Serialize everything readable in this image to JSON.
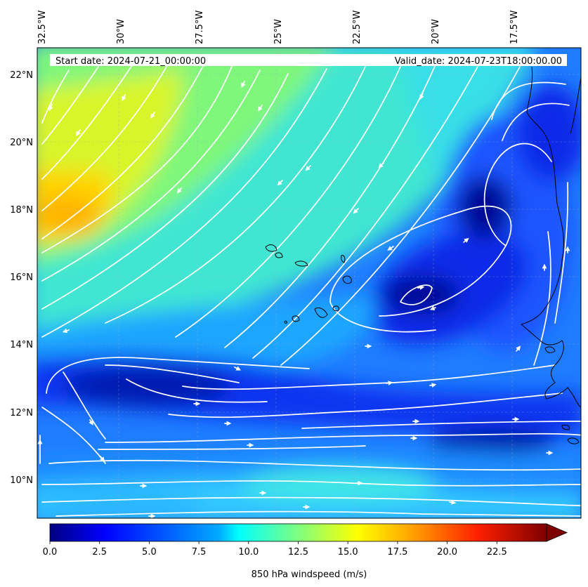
{
  "header": {
    "start_date": "Start date: 2024-07-21_00:00:00",
    "valid_date": "Valid_date: 2024-07-23T18:00:00.00"
  },
  "axes": {
    "lon_labels": [
      "32.5°W",
      "30°W",
      "27.5°W",
      "25°W",
      "22.5°W",
      "20°W",
      "17.5°W"
    ],
    "lat_labels": [
      "22°N",
      "20°N",
      "18°N",
      "16°N",
      "14°N",
      "12°N",
      "10°N"
    ]
  },
  "colorbar": {
    "label": "850 hPa windspeed (m/s)",
    "ticks": [
      "0.0",
      "2.5",
      "5.0",
      "7.5",
      "10.0",
      "12.5",
      "15.0",
      "17.5",
      "20.0",
      "22.5"
    ],
    "min": 0,
    "max": 25,
    "extend": "max",
    "colormap": [
      "#00007f",
      "#0000ff",
      "#007fff",
      "#00ffff",
      "#7fff7f",
      "#ffff00",
      "#ff7f00",
      "#ff0000",
      "#7f0000"
    ]
  },
  "map": {
    "projection": "PlateCarree",
    "lon_range": [
      -32.5,
      -15.5
    ],
    "lat_range": [
      8.8,
      22.8
    ],
    "field": "850 hPa windspeed (m/s)",
    "features": [
      "streamlines (white)",
      "coastlines (black)",
      "gridlines (dashed)"
    ],
    "highlights": [
      {
        "region": "NW corner",
        "speed_ms": 15
      },
      {
        "region": "cyclonic vortex near 19.5W 15.5N",
        "speed_ms": 3
      },
      {
        "region": "belt near 12.5N",
        "speed_ms": 4
      },
      {
        "region": "band near 10N",
        "speed_ms": 10
      }
    ]
  }
}
